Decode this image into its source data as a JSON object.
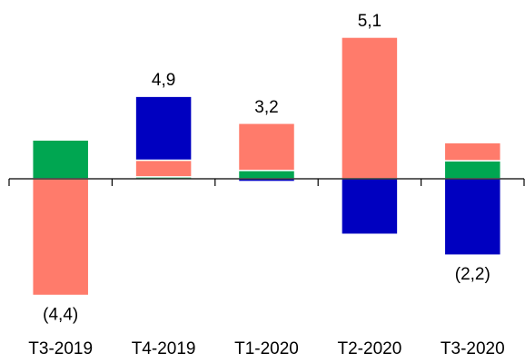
{
  "chart_data": {
    "type": "bar",
    "stacked": true,
    "categories": [
      "T3-2019",
      "T4-2019",
      "T1-2020",
      "T2-2020",
      "T3-2020"
    ],
    "annotations": [
      "(4,4)",
      "4,9",
      "3,2",
      "5,1",
      "(2,2)"
    ],
    "series": [
      {
        "color": "#00a651",
        "values": [
          1.4,
          0.07,
          0.3,
          0,
          0.65
        ]
      },
      {
        "color": "#7fc6e0",
        "values": [
          0.05,
          0,
          0,
          0,
          0
        ]
      },
      {
        "color": "#ff7b6b",
        "values": [
          -4.2,
          0.6,
          1.7,
          5.1,
          0.65
        ]
      },
      {
        "color": "#0000c0",
        "values": [
          0,
          2.3,
          -0.1,
          -2.0,
          -2.75
        ]
      }
    ]
  }
}
